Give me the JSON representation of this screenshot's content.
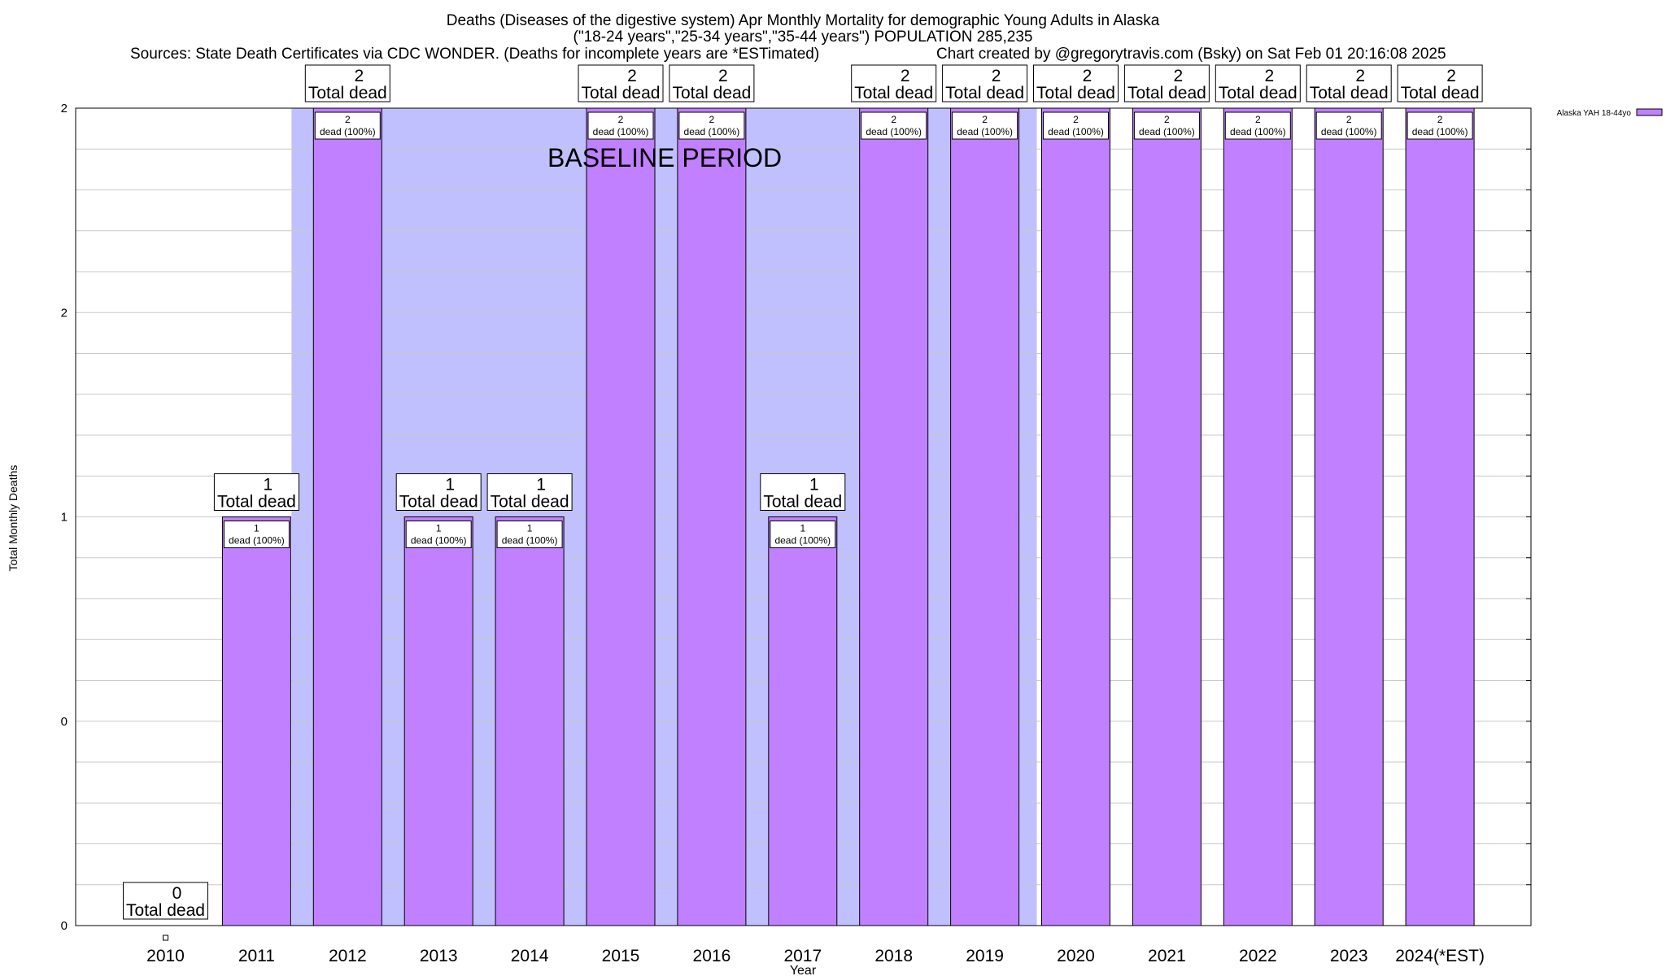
{
  "chart_data": {
    "type": "bar",
    "title_lines": [
      "Deaths (Diseases of the digestive system) Apr Monthly Mortality for demographic Young Adults in Alaska",
      "(\"18-24 years\",\"25-34 years\",\"35-44 years\") POPULATION 285,235"
    ],
    "sources": "Sources: State Death Certificates via CDC WONDER. (Deaths for incomplete years are *ESTimated)",
    "credit": "Chart created by @gregorytravis.com (Bsky) on Sat Feb 01 20:16:08 2025",
    "xlabel": "Year",
    "ylabel": "Total Monthly Deaths",
    "ylim": [
      0,
      2
    ],
    "yticks": [
      0,
      0.5,
      1,
      1.5,
      2
    ],
    "ytick_labels": [
      "0",
      "0",
      "1",
      "2",
      "2"
    ],
    "grid": true,
    "legend_position": "top-right",
    "categories": [
      "2010",
      "2011",
      "2012",
      "2013",
      "2014",
      "2015",
      "2016",
      "2017",
      "2018",
      "2019",
      "2020",
      "2021",
      "2022",
      "2023",
      "2024(*EST)"
    ],
    "series": [
      {
        "name": "Alaska YAH 18-44yo",
        "color": "#c080ff",
        "values": [
          0,
          1,
          2,
          1,
          1,
          2,
          2,
          1,
          2,
          2,
          2,
          2,
          2,
          2,
          2
        ]
      }
    ],
    "total_label_suffix": "Total dead",
    "inner_label_suffix": "dead (100%)",
    "baseline": {
      "label": "BASELINE PERIOD",
      "from": "2012",
      "to": "2019",
      "color": "#c0c0ff"
    }
  }
}
